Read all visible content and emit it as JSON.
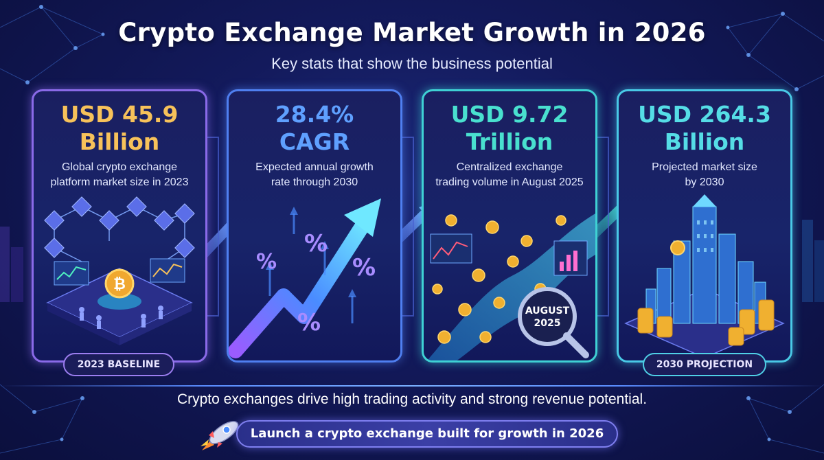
{
  "title": "Crypto Exchange Market Growth in 2026",
  "subtitle": "Key stats that show the business potential",
  "cards": [
    {
      "stat_line1": "USD 45.9",
      "stat_line2": "Billion",
      "desc_line1": "Global crypto exchange",
      "desc_line2": "platform market size in 2023",
      "badge": "2023 BASELINE",
      "illustration": "blockchain-trading-floor-illustration"
    },
    {
      "stat_line1": "28.4%",
      "stat_line2": "CAGR",
      "desc_line1": "Expected annual growth",
      "desc_line2": "rate through 2030",
      "illustration": "growth-arrow-illustration",
      "symbols": [
        "%",
        "%",
        "%",
        "%"
      ]
    },
    {
      "stat_line1": "USD 9.72",
      "stat_line2": "Trillion",
      "desc_line1": "Centralized exchange",
      "desc_line2": "trading volume in August 2025",
      "illustration": "coin-stream-illustration",
      "magnifier_line1": "AUGUST",
      "magnifier_line2": "2025"
    },
    {
      "stat_line1": "USD 264.3",
      "stat_line2": "Billion",
      "desc_line1": "Projected market size",
      "desc_line2": "by 2030",
      "badge": "2030 PROJECTION",
      "illustration": "future-city-coins-illustration"
    }
  ],
  "tagline": "Crypto exchanges drive high trading activity and strong revenue potential.",
  "cta": "Launch a crypto exchange built for growth in 2026",
  "colors": {
    "background": "#131a5c",
    "gold": "#f7c25a",
    "blue": "#5fa0ff",
    "teal": "#49e0cf",
    "purple": "#8a6ae8"
  }
}
